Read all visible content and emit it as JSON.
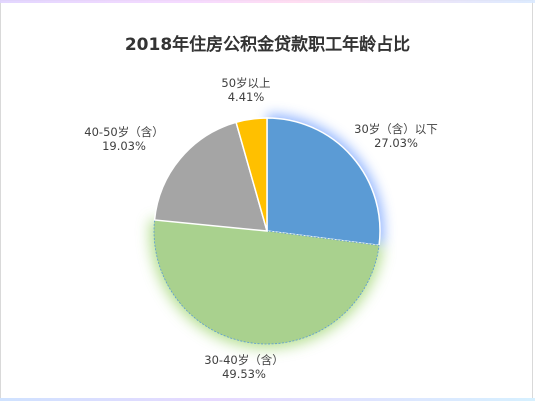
{
  "chart_data": {
    "type": "pie",
    "title": "2018年住房公积金贷款职工年龄占比",
    "slices": [
      {
        "label": "30岁（含）以下",
        "value": 27.03,
        "value_label": "27.03%",
        "color": "#5b9bd5"
      },
      {
        "label": "30-40岁（含）",
        "value": 49.53,
        "value_label": "49.53%",
        "color": "#a9d18e"
      },
      {
        "label": "40-50岁（含）",
        "value": 19.03,
        "value_label": "19.03%",
        "color": "#a5a5a5"
      },
      {
        "label": "50岁以上",
        "value": 4.41,
        "value_label": "4.41%",
        "color": "#ffc000"
      }
    ],
    "start_angle_deg": 0,
    "direction": "clockwise",
    "exploded_glow": [
      "30岁（含）以下",
      "30-40岁（含）"
    ],
    "legend": "none"
  }
}
